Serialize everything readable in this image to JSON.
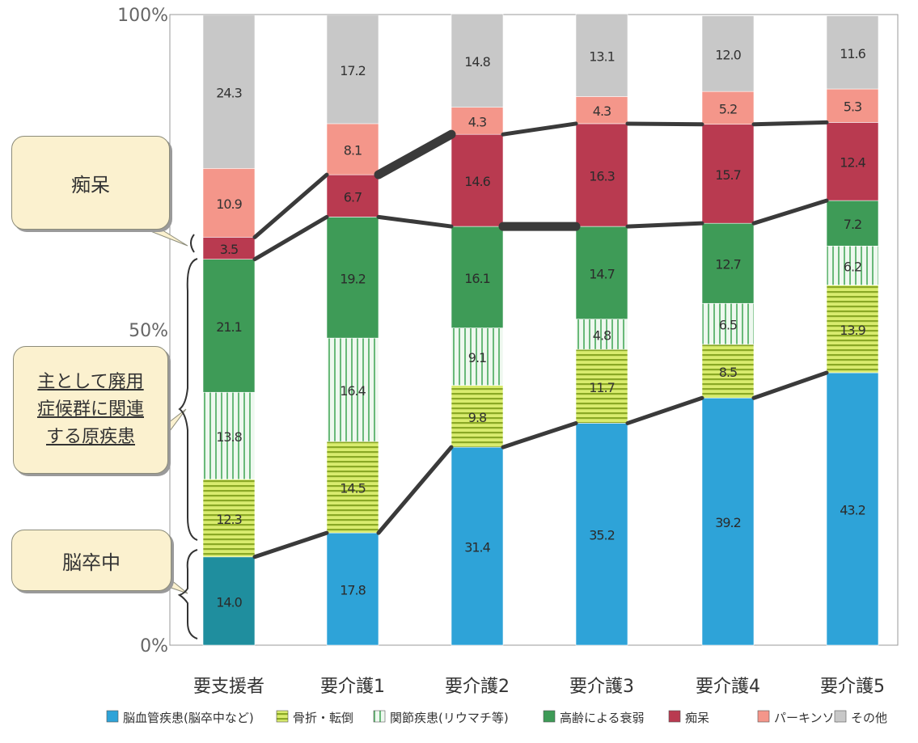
{
  "colors": {
    "stroke": "#2ea3d8",
    "stroke_first": "#1f8e9e",
    "fracture": "#c5df45",
    "joint": "#dff2e3",
    "aging": "#3e9b57",
    "dementia": "#b93a50",
    "parkinson": "#f4968a",
    "other": "#c8c8c8"
  },
  "callouts": {
    "dementia": "痴呆",
    "disuse_line1": "主として廃用",
    "disuse_line2": "症候群に関連",
    "disuse_line3": "する原疾患",
    "stroke": "脳卒中"
  },
  "chart_data": {
    "type": "bar",
    "stacked": true,
    "percent": true,
    "categories": [
      "要支援者",
      "要介護1",
      "要介護2",
      "要介護3",
      "要介護4",
      "要介護5"
    ],
    "y_ticks": [
      "0%",
      "50%",
      "100%"
    ],
    "ylim": [
      0,
      100
    ],
    "series": [
      {
        "name": "脳血管疾患(脳卒中など)",
        "color_key": "stroke",
        "pattern": "solid",
        "values": [
          14.0,
          17.8,
          31.4,
          35.2,
          39.2,
          43.2
        ],
        "labels": [
          "14.0",
          "17.8",
          "31.4",
          "35.2",
          "39.2",
          "43.2"
        ]
      },
      {
        "name": "骨折・転倒",
        "color_key": "fracture",
        "pattern": "hlines",
        "values": [
          12.3,
          14.5,
          9.8,
          11.7,
          8.5,
          13.9
        ],
        "labels": [
          "12.3",
          "14.5",
          "9.8",
          "11.7",
          "8.5",
          "13.9"
        ]
      },
      {
        "name": "関節疾患(リウマチ等)",
        "color_key": "joint",
        "pattern": "vlines",
        "values": [
          13.8,
          16.4,
          9.1,
          4.8,
          6.5,
          6.2
        ],
        "labels": [
          "13.8",
          "16.4",
          "9.1",
          "4.8",
          "6.5",
          "6.2"
        ]
      },
      {
        "name": "高齢による衰弱",
        "color_key": "aging",
        "pattern": "solid",
        "values": [
          21.1,
          19.2,
          16.1,
          14.7,
          12.7,
          7.2
        ],
        "labels": [
          "21.1",
          "19.2",
          "16.1",
          "14.7",
          "12.7",
          "7.2"
        ]
      },
      {
        "name": "痴呆",
        "color_key": "dementia",
        "pattern": "solid",
        "values": [
          3.5,
          6.7,
          14.6,
          16.3,
          15.7,
          12.4
        ],
        "labels": [
          "3.5",
          "6.7",
          "14.6",
          "16.3",
          "15.7",
          "12.4"
        ]
      },
      {
        "name": "パーキンソン",
        "color_key": "parkinson",
        "pattern": "solid",
        "values": [
          10.9,
          8.1,
          4.3,
          4.3,
          5.2,
          5.3
        ],
        "labels": [
          "10.9",
          "8.1",
          "4.3",
          "4.3",
          "5.2",
          "5.3"
        ]
      },
      {
        "name": "その他",
        "color_key": "other",
        "pattern": "solid",
        "values": [
          24.3,
          17.2,
          14.8,
          13.1,
          12.0,
          11.6
        ],
        "labels": [
          "24.3",
          "17.2",
          "14.8",
          "13.1",
          "12.0",
          "11.6"
        ]
      }
    ],
    "legend_position": "bottom"
  }
}
